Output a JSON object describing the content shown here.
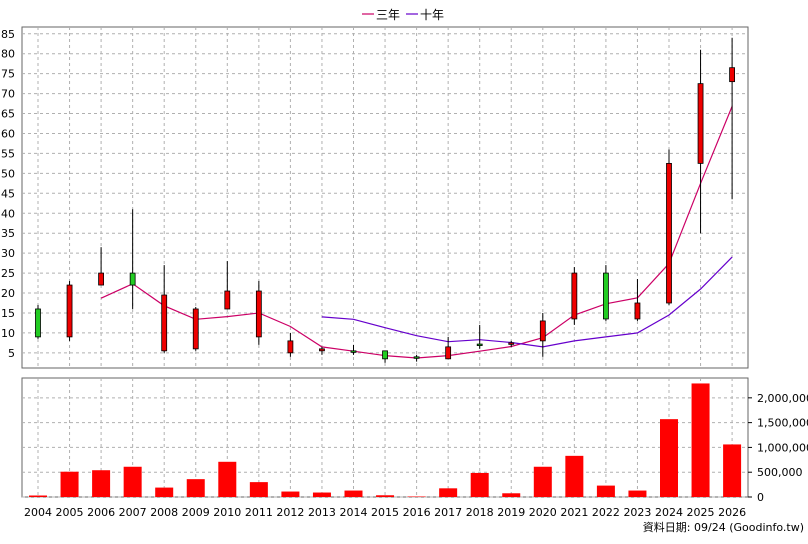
{
  "chart_data": {
    "type": "candlestick",
    "legend": [
      {
        "name": "三年",
        "color": "#cc0066"
      },
      {
        "name": "十年",
        "color": "#6600cc"
      }
    ],
    "years": [
      "2004",
      "2005",
      "2006",
      "2007",
      "2008",
      "2009",
      "2010",
      "2011",
      "2012",
      "2013",
      "2014",
      "2015",
      "2016",
      "2017",
      "2018",
      "2019",
      "2020",
      "2021",
      "2022",
      "2023",
      "2024",
      "2025",
      "2026"
    ],
    "price_axis": {
      "ticks": [
        "5",
        "10",
        "15",
        "20",
        "25",
        "30",
        "35",
        "40",
        "45",
        "50",
        "55",
        "60",
        "65",
        "70",
        "75",
        "80",
        "85"
      ],
      "ylim": [
        1.2,
        86.7
      ]
    },
    "volume_axis": {
      "ticks": [
        "0",
        "500,000",
        "1,000,000",
        "1,500,000",
        "2,000,000"
      ],
      "ylim": [
        0,
        2400000
      ]
    },
    "candles": [
      {
        "year": "2004",
        "open": 9,
        "high": 17,
        "low": 8.5,
        "close": 16
      },
      {
        "year": "2005",
        "open": 22,
        "high": 23,
        "low": 8,
        "close": 9
      },
      {
        "year": "2006",
        "open": 25,
        "high": 31.5,
        "low": 22,
        "close": 22
      },
      {
        "year": "2007",
        "open": 22,
        "high": 41,
        "low": 16,
        "close": 25
      },
      {
        "year": "2008",
        "open": 19.5,
        "high": 27,
        "low": 5,
        "close": 5.5
      },
      {
        "year": "2009",
        "open": 16,
        "high": 16.5,
        "low": 5.5,
        "close": 6
      },
      {
        "year": "2010",
        "open": 20.5,
        "high": 28,
        "low": 16,
        "close": 16
      },
      {
        "year": "2011",
        "open": 20.5,
        "high": 23,
        "low": 7,
        "close": 9
      },
      {
        "year": "2012",
        "open": 8,
        "high": 10,
        "low": 4,
        "close": 5
      },
      {
        "year": "2013",
        "open": 6,
        "high": 6.5,
        "low": 4.5,
        "close": 5.5
      },
      {
        "year": "2014",
        "open": 5.5,
        "high": 7,
        "low": 4.5,
        "close": 5.5
      },
      {
        "year": "2015",
        "open": 3.5,
        "high": 5.5,
        "low": 2.5,
        "close": 5.5
      },
      {
        "year": "2016",
        "open": 4,
        "high": 4.5,
        "low": 2.8,
        "close": 4
      },
      {
        "year": "2017",
        "open": 6.5,
        "high": 9,
        "low": 3.5,
        "close": 3.5
      },
      {
        "year": "2018",
        "open": 7,
        "high": 12,
        "low": 6,
        "close": 7.2
      },
      {
        "year": "2019",
        "open": 7.5,
        "high": 8,
        "low": 6.5,
        "close": 7.3
      },
      {
        "year": "2020",
        "open": 13,
        "high": 15,
        "low": 4,
        "close": 8
      },
      {
        "year": "2021",
        "open": 25,
        "high": 26.5,
        "low": 12,
        "close": 13.5
      },
      {
        "year": "2022",
        "open": 13.5,
        "high": 27,
        "low": 13,
        "close": 25
      },
      {
        "year": "2023",
        "open": 17.5,
        "high": 23.5,
        "low": 13,
        "close": 13.5
      },
      {
        "year": "2024",
        "open": 52.5,
        "high": 56,
        "low": 17,
        "close": 17.5
      },
      {
        "year": "2025",
        "open": 72.5,
        "high": 81,
        "low": 35,
        "close": 52.5
      },
      {
        "year": "2026",
        "open": 76.5,
        "high": 84,
        "low": 43.5,
        "close": 73
      }
    ],
    "series": [
      {
        "name": "三年",
        "values": [
          null,
          null,
          18.7,
          22.3,
          16.8,
          13.4,
          14.1,
          15,
          11.6,
          6.5,
          5.4,
          4.3,
          3.7,
          4.3,
          5.4,
          6.6,
          8.8,
          14.5,
          17.3,
          18.8,
          27.4,
          47.5,
          66.8
        ]
      },
      {
        "name": "十年",
        "values": [
          null,
          null,
          null,
          null,
          null,
          null,
          null,
          null,
          null,
          14,
          13.4,
          11.3,
          9.3,
          7.8,
          8.3,
          7.6,
          6.5,
          8,
          9,
          10,
          14.5,
          21,
          29
        ]
      }
    ],
    "volume": [
      30000,
      510000,
      540000,
      610000,
      190000,
      360000,
      710000,
      300000,
      110000,
      90000,
      130000,
      35000,
      10000,
      175000,
      485000,
      75000,
      610000,
      830000,
      230000,
      130000,
      1570000,
      2290000,
      1060000
    ],
    "footer": "資料日期: 09/24  (Goodinfo.tw)"
  }
}
